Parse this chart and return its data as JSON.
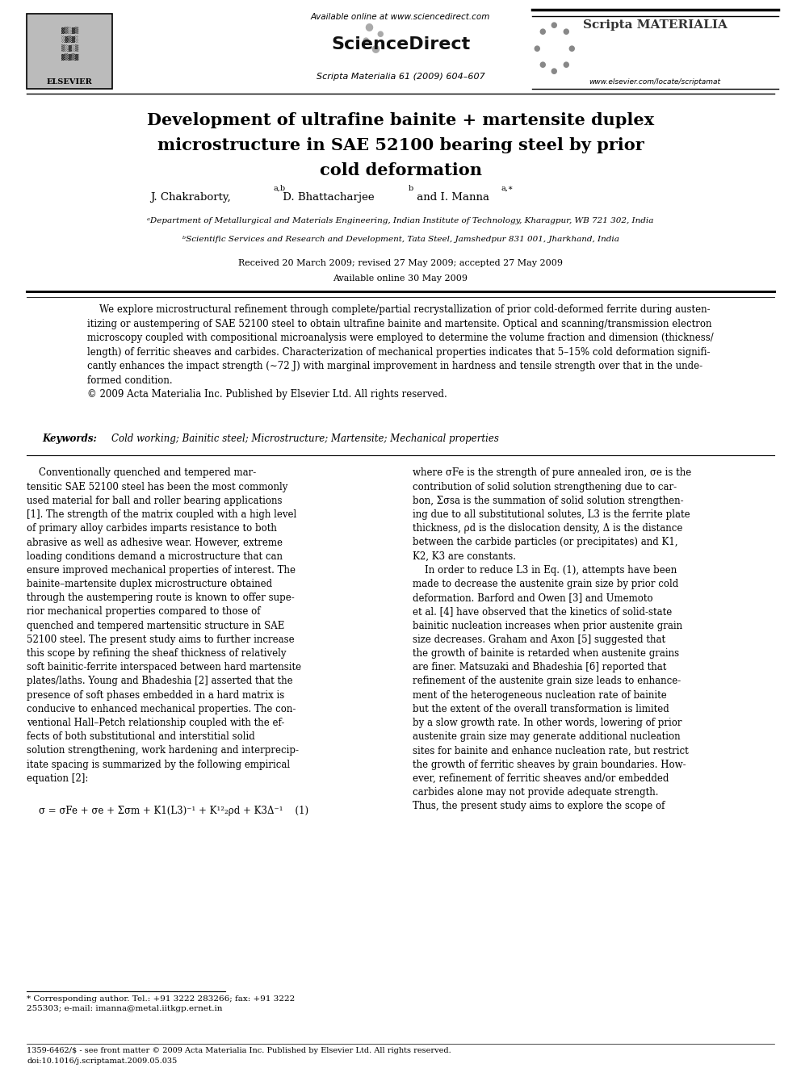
{
  "page_width": 9.92,
  "page_height": 13.23,
  "bg_color": "#ffffff",
  "header_available": "Available online at www.sciencedirect.com",
  "header_journal": "Scripta Materialia 61 (2009) 604–607",
  "header_elsevier": "ELSEVIER",
  "header_url": "www.elsevier.com/locate/scriptamat",
  "title": "Development of ultrafine bainite + martensite duplex\nmicrostructure in SAE 52100 bearing steel by prior\ncold deformation",
  "affil1": "ᵃDepartment of Metallurgical and Materials Engineering, Indian Institute of Technology, Kharagpur, WB 721 302, India",
  "affil2": "ᵇScientific Services and Research and Development, Tata Steel, Jamshedpur 831 001, Jharkhand, India",
  "received": "Received 20 March 2009; revised 27 May 2009; accepted 27 May 2009",
  "available": "Available online 30 May 2009",
  "abstract_text": "    We explore microstructural refinement through complete/partial recrystallization of prior cold-deformed ferrite during austen-\nitizing or austempering of SAE 52100 steel to obtain ultrafine bainite and martensite. Optical and scanning/transmission electron\nmicroscopy coupled with compositional microanalysis were employed to determine the volume fraction and dimension (thickness/\nlength) of ferritic sheaves and carbides. Characterization of mechanical properties indicates that 5–15% cold deformation signifi-\ncantly enhances the impact strength (∼72 J) with marginal improvement in hardness and tensile strength over that in the unde-\nformed condition.\n© 2009 Acta Materialia Inc. Published by Elsevier Ltd. All rights reserved.",
  "keywords": "Cold working; Bainitic steel; Microstructure; Martensite; Mechanical properties",
  "col1_text": "    Conventionally quenched and tempered mar-\ntensitic SAE 52100 steel has been the most commonly\nused material for ball and roller bearing applications\n[1]. The strength of the matrix coupled with a high level\nof primary alloy carbides imparts resistance to both\nabrasive as well as adhesive wear. However, extreme\nloading conditions demand a microstructure that can\nensure improved mechanical properties of interest. The\nbainite–martensite duplex microstructure obtained\nthrough the austempering route is known to offer supe-\nrior mechanical properties compared to those of\nquenched and tempered martensitic structure in SAE\n52100 steel. The present study aims to further increase\nthis scope by refining the sheaf thickness of relatively\nsoft bainitic-ferrite interspaced between hard martensite\nplates/laths. Young and Bhadeshia [2] asserted that the\npresence of soft phases embedded in a hard matrix is\nconducive to enhanced mechanical properties. The con-\nventional Hall–Petch relationship coupled with the ef-\nfects of both substitutional and interstitial solid\nsolution strengthening, work hardening and interprecip-\nitate spacing is summarized by the following empirical\nequation [2]:",
  "equation": "σ = σFe + σe + Σσm + K1(L3)⁻¹ + K¹²₂ρd + K3Δ⁻¹    (1)",
  "col2_text": "where σFe is the strength of pure annealed iron, σe is the\ncontribution of solid solution strengthening due to car-\nbon, Σσsa is the summation of solid solution strengthen-\ning due to all substitutional solutes, L3 is the ferrite plate\nthickness, ρd is the dislocation density, Δ is the distance\nbetween the carbide particles (or precipitates) and K1,\nK2, K3 are constants.\n    In order to reduce L3 in Eq. (1), attempts have been\nmade to decrease the austenite grain size by prior cold\ndeformation. Barford and Owen [3] and Umemoto\net al. [4] have observed that the kinetics of solid-state\nbainitic nucleation increases when prior austenite grain\nsize decreases. Graham and Axon [5] suggested that\nthe growth of bainite is retarded when austenite grains\nare finer. Matsuzaki and Bhadeshia [6] reported that\nrefinement of the austenite grain size leads to enhance-\nment of the heterogeneous nucleation rate of bainite\nbut the extent of the overall transformation is limited\nby a slow growth rate. In other words, lowering of prior\naustenite grain size may generate additional nucleation\nsites for bainite and enhance nucleation rate, but restrict\nthe growth of ferritic sheaves by grain boundaries. How-\never, refinement of ferritic sheaves and/or embedded\ncarbides alone may not provide adequate strength.\nThus, the present study aims to explore the scope of",
  "footnote": "* Corresponding author. Tel.: +91 3222 283266; fax: +91 3222\n255303; e-mail: imanna@metal.iitkgp.ernet.in",
  "bottom1": "1359-6462/$ - see front matter © 2009 Acta Materialia Inc. Published by Elsevier Ltd. All rights reserved.",
  "bottom2": "doi:10.1016/j.scriptamat.2009.05.035"
}
